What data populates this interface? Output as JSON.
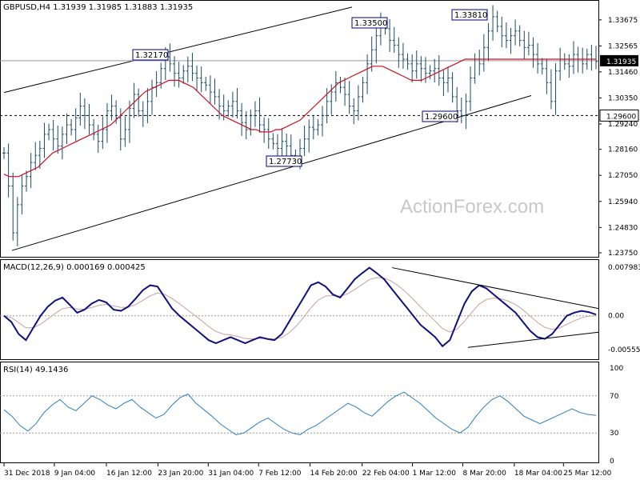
{
  "chart_data": {
    "type": "candlestick-indicators",
    "symbol_line": "GBPUSD,H4  1.31939 1.31985 1.31883 1.31935",
    "watermark": "ActionForex.com",
    "main": {
      "ylim": [
        1.2375,
        1.3425
      ],
      "y_ticks": [
        "1.33675",
        "1.32565",
        "1.31460",
        "1.30350",
        "1.29240",
        "1.28160",
        "1.27050",
        "1.25940",
        "1.24830",
        "1.23750"
      ],
      "current_price_label": "1.31935",
      "current_price": 1.31935,
      "support_label": "1.29600",
      "support_level": 1.296,
      "annotations": [
        {
          "text": "1.32170",
          "value": 1.3217
        },
        {
          "text": "1.33500",
          "value": 1.335
        },
        {
          "text": "1.33810",
          "value": 1.3381
        },
        {
          "text": "1.29600",
          "value": 1.296
        },
        {
          "text": "1.27730",
          "value": 1.2773
        }
      ],
      "price_series": [
        1.28,
        1.266,
        1.246,
        1.258,
        1.266,
        1.27,
        1.276,
        1.279,
        1.282,
        1.288,
        1.29,
        1.286,
        1.283,
        1.288,
        1.292,
        1.29,
        1.295,
        1.3,
        1.296,
        1.292,
        1.288,
        1.285,
        1.29,
        1.298,
        1.3,
        1.295,
        1.286,
        1.29,
        1.299,
        1.305,
        1.298,
        1.296,
        1.302,
        1.308,
        1.31,
        1.316,
        1.321,
        1.318,
        1.314,
        1.312,
        1.315,
        1.317,
        1.314,
        1.312,
        1.31,
        1.309,
        1.306,
        1.304,
        1.3,
        1.298,
        1.3,
        1.302,
        1.298,
        1.293,
        1.29,
        1.296,
        1.298,
        1.292,
        1.29,
        1.286,
        1.284,
        1.282,
        1.285,
        1.283,
        1.279,
        1.278,
        1.282,
        1.286,
        1.291,
        1.29,
        1.292,
        1.296,
        1.302,
        1.306,
        1.31,
        1.308,
        1.305,
        1.3,
        1.298,
        1.304,
        1.31,
        1.318,
        1.324,
        1.33,
        1.335,
        1.333,
        1.328,
        1.326,
        1.322,
        1.32,
        1.318,
        1.315,
        1.318,
        1.316,
        1.314,
        1.315,
        1.316,
        1.312,
        1.31,
        1.312,
        1.304,
        1.298,
        1.296,
        1.302,
        1.312,
        1.32,
        1.318,
        1.325,
        1.332,
        1.3381,
        1.334,
        1.33,
        1.328,
        1.33,
        1.332,
        1.328,
        1.325,
        1.326,
        1.322,
        1.318,
        1.316,
        1.31,
        1.302,
        1.315,
        1.32,
        1.318,
        1.317,
        1.322,
        1.32,
        1.318,
        1.322,
        1.32,
        1.319
      ],
      "ma_series": [
        1.271,
        1.27,
        1.27,
        1.27,
        1.271,
        1.272,
        1.273,
        1.274,
        1.276,
        1.278,
        1.28,
        1.281,
        1.282,
        1.283,
        1.284,
        1.285,
        1.286,
        1.287,
        1.288,
        1.289,
        1.29,
        1.291,
        1.292,
        1.294,
        1.296,
        1.298,
        1.3,
        1.302,
        1.304,
        1.306,
        1.307,
        1.308,
        1.309,
        1.31,
        1.311,
        1.311,
        1.311,
        1.31,
        1.309,
        1.308,
        1.306,
        1.304,
        1.302,
        1.3,
        1.298,
        1.296,
        1.295,
        1.294,
        1.293,
        1.292,
        1.291,
        1.29,
        1.29,
        1.289,
        1.289,
        1.289,
        1.29,
        1.29,
        1.291,
        1.292,
        1.293,
        1.294,
        1.296,
        1.298,
        1.3,
        1.302,
        1.304,
        1.306,
        1.308,
        1.31,
        1.311,
        1.312,
        1.313,
        1.314,
        1.315,
        1.316,
        1.317,
        1.317,
        1.317,
        1.316,
        1.315,
        1.314,
        1.313,
        1.312,
        1.311,
        1.311,
        1.311,
        1.312,
        1.313,
        1.314,
        1.315,
        1.316,
        1.317,
        1.318,
        1.319,
        1.32,
        1.32,
        1.32,
        1.32,
        1.32,
        1.32,
        1.32,
        1.32,
        1.32,
        1.32,
        1.32,
        1.32,
        1.32,
        1.32,
        1.32,
        1.32,
        1.32,
        1.32,
        1.32,
        1.32,
        1.32,
        1.32,
        1.32,
        1.32,
        1.32,
        1.32,
        1.32,
        1.32
      ]
    },
    "macd": {
      "label": "MACD(12,26,9) 0.000169 0.000425",
      "ylim": [
        -0.007,
        0.0085
      ],
      "y_ticks": [
        "0.007983",
        "0.00",
        "-0.005559"
      ],
      "zero_label": "0.00",
      "series": [
        0.0,
        -0.001,
        -0.003,
        -0.004,
        -0.002,
        0.0,
        0.0015,
        0.0025,
        0.003,
        0.0018,
        0.0005,
        0.001,
        0.002,
        0.0026,
        0.0022,
        0.001,
        0.0008,
        0.0015,
        0.0028,
        0.0042,
        0.005,
        0.0048,
        0.003,
        0.0012,
        0.0,
        -0.001,
        -0.002,
        -0.003,
        -0.004,
        -0.0045,
        -0.004,
        -0.0035,
        -0.004,
        -0.0045,
        -0.004,
        -0.0035,
        -0.0038,
        -0.004,
        -0.003,
        -0.001,
        0.001,
        0.003,
        0.005,
        0.0055,
        0.0048,
        0.0035,
        0.003,
        0.0045,
        0.006,
        0.007,
        0.0079,
        0.007,
        0.006,
        0.0045,
        0.003,
        0.0015,
        0.0,
        -0.0015,
        -0.0025,
        -0.0035,
        -0.005,
        -0.004,
        -0.001,
        0.002,
        0.004,
        0.005,
        0.0045,
        0.0035,
        0.0025,
        0.0015,
        0.0005,
        -0.001,
        -0.0025,
        -0.0035,
        -0.0038,
        -0.003,
        -0.0015,
        0.0,
        0.0005,
        0.0008,
        0.0006,
        0.0002
      ]
    },
    "rsi": {
      "label": "RSI(14) 49.1436",
      "ylim": [
        0,
        100
      ],
      "y_ticks": [
        "100",
        "70",
        "30",
        "0"
      ],
      "levels": [
        70,
        30
      ],
      "series": [
        55,
        48,
        38,
        32,
        40,
        52,
        60,
        66,
        58,
        54,
        62,
        70,
        66,
        60,
        56,
        62,
        66,
        58,
        52,
        46,
        50,
        60,
        68,
        72,
        62,
        55,
        48,
        40,
        34,
        28,
        30,
        36,
        42,
        46,
        40,
        34,
        30,
        28,
        34,
        38,
        44,
        50,
        56,
        62,
        58,
        52,
        48,
        56,
        64,
        70,
        74,
        68,
        62,
        54,
        46,
        40,
        34,
        30,
        36,
        48,
        58,
        66,
        70,
        64,
        56,
        48,
        44,
        40,
        44,
        48,
        52,
        56,
        52,
        50,
        49
      ]
    },
    "x_tick_labels": [
      "31 Dec 2018",
      "9 Jan 04:00",
      "16 Jan 12:00",
      "23 Jan 20:00",
      "31 Jan 04:00",
      "7 Feb 12:00",
      "14 Feb 20:00",
      "22 Feb 04:00",
      "1 Mar 12:00",
      "8 Mar 20:00",
      "18 Mar 04:00",
      "25 Mar 12:00"
    ],
    "x_ticks": [
      0,
      0.085,
      0.173,
      0.26,
      0.345,
      0.43,
      0.517,
      0.605,
      0.69,
      0.775,
      0.862,
      0.945
    ]
  }
}
